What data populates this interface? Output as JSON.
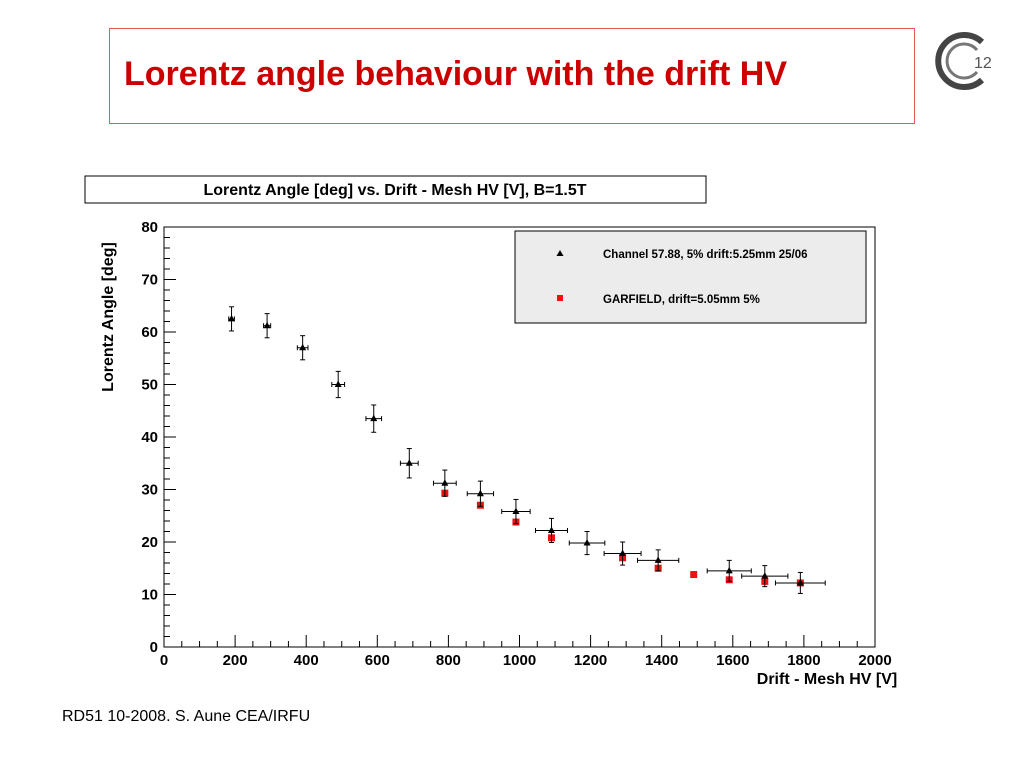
{
  "slide": {
    "title": "Lorentz angle behaviour with the drift HV",
    "footer": "RD51 10-2008. S. Aune CEA/IRFU",
    "logo_text": "C12",
    "title_color": "#cc0000"
  },
  "chart_data": {
    "type": "scatter",
    "title": "Lorentz Angle [deg] vs. Drift - Mesh HV [V], B=1.5T",
    "xlabel": "Drift - Mesh HV [V]",
    "ylabel": "Lorentz Angle [deg]",
    "xlim": [
      0,
      2000
    ],
    "ylim": [
      0,
      80
    ],
    "xticks": [
      "0",
      "200",
      "400",
      "600",
      "800",
      "1000",
      "1200",
      "1400",
      "1600",
      "1800",
      "2000"
    ],
    "yticks": [
      "0",
      "10",
      "20",
      "30",
      "40",
      "50",
      "60",
      "70",
      "80"
    ],
    "legend_position": "top-right",
    "series": [
      {
        "name": "Channel 57.88, 5% drift:5.25mm 25/06",
        "marker": "triangle",
        "color": "#000000",
        "points": [
          {
            "x": 190,
            "y": 62.5,
            "xerr": 8,
            "yerr": 2.3
          },
          {
            "x": 290,
            "y": 61.2,
            "xerr": 10,
            "yerr": 2.3
          },
          {
            "x": 390,
            "y": 57.0,
            "xerr": 15,
            "yerr": 2.3
          },
          {
            "x": 490,
            "y": 50.0,
            "xerr": 18,
            "yerr": 2.5
          },
          {
            "x": 590,
            "y": 43.5,
            "xerr": 22,
            "yerr": 2.6
          },
          {
            "x": 690,
            "y": 35.0,
            "xerr": 25,
            "yerr": 2.8
          },
          {
            "x": 790,
            "y": 31.2,
            "xerr": 32,
            "yerr": 2.5
          },
          {
            "x": 890,
            "y": 29.2,
            "xerr": 37,
            "yerr": 2.4
          },
          {
            "x": 990,
            "y": 25.8,
            "xerr": 40,
            "yerr": 2.3
          },
          {
            "x": 1090,
            "y": 22.2,
            "xerr": 45,
            "yerr": 2.3
          },
          {
            "x": 1190,
            "y": 19.8,
            "xerr": 50,
            "yerr": 2.2
          },
          {
            "x": 1290,
            "y": 17.8,
            "xerr": 52,
            "yerr": 2.2
          },
          {
            "x": 1390,
            "y": 16.5,
            "xerr": 58,
            "yerr": 2.0
          },
          {
            "x": 1590,
            "y": 14.5,
            "xerr": 62,
            "yerr": 2.0
          },
          {
            "x": 1690,
            "y": 13.5,
            "xerr": 65,
            "yerr": 2.0
          },
          {
            "x": 1790,
            "y": 12.2,
            "xerr": 70,
            "yerr": 2.0
          }
        ]
      },
      {
        "name": "GARFIELD, drift=5.05mm 5%",
        "marker": "square",
        "color": "#ee1111",
        "points": [
          {
            "x": 790,
            "y": 29.3
          },
          {
            "x": 890,
            "y": 27.0
          },
          {
            "x": 990,
            "y": 23.8
          },
          {
            "x": 1090,
            "y": 20.8
          },
          {
            "x": 1290,
            "y": 17.0
          },
          {
            "x": 1390,
            "y": 15.0
          },
          {
            "x": 1490,
            "y": 13.8
          },
          {
            "x": 1590,
            "y": 12.8
          },
          {
            "x": 1690,
            "y": 12.5
          },
          {
            "x": 1790,
            "y": 12.2
          }
        ]
      }
    ]
  }
}
